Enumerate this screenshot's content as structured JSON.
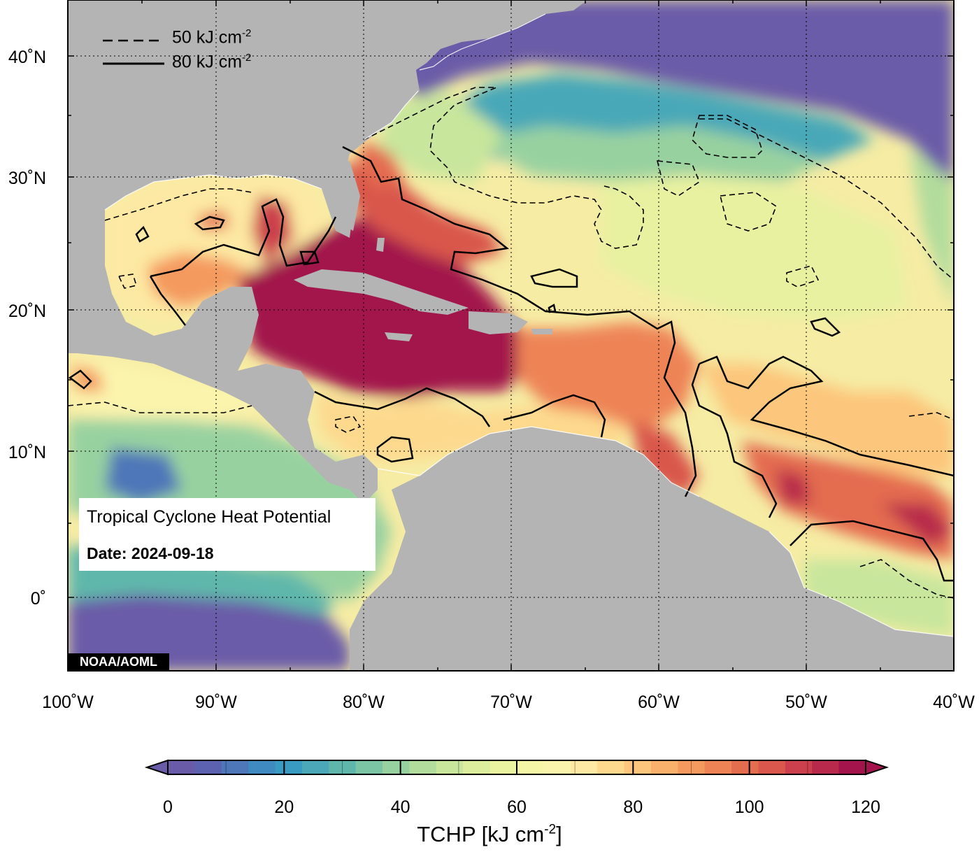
{
  "credit": "NOAA/AOML",
  "title": "Tropical Cyclone Heat Potential",
  "date_label": "Date: 2024-09-18",
  "legend": {
    "dashed": {
      "text": "50 kJ cm",
      "exp": "-2"
    },
    "solid": {
      "text": "80 kJ cm",
      "exp": "-2"
    }
  },
  "lat_labels": [
    "40˚N",
    "30˚N",
    "20˚N",
    "10˚N",
    "0˚"
  ],
  "lon_labels": [
    "100˚W",
    "90˚W",
    "80˚W",
    "70˚W",
    "60˚W",
    "50˚W",
    "40˚W"
  ],
  "colorbar": {
    "title": "TCHP [kJ cm",
    "title_exp": "-2",
    "title_close": "]",
    "ticks": [
      "0",
      "20",
      "40",
      "60",
      "80",
      "100",
      "120"
    ],
    "colors": [
      "#6a5ba8",
      "#5d62b0",
      "#4d77b8",
      "#3f8ac0",
      "#3a9bc2",
      "#4aa8b8",
      "#5fb7ab",
      "#7cc5a4",
      "#98d1a0",
      "#b2dc9c",
      "#c8e69c",
      "#dcee9e",
      "#eaf39f",
      "#f5f7a6",
      "#fbf4ad",
      "#fde9a3",
      "#fdd98e",
      "#fcc67c",
      "#f9b06b",
      "#f49a5e",
      "#ee8456",
      "#e46c4f",
      "#d9574c",
      "#cc3f4c",
      "#b8294b",
      "#a2144b"
    ],
    "under_color": "#6a5ba8",
    "over_color": "#a2144b"
  },
  "colors": {
    "land": "#b4b4b4",
    "ocean_cold": "#6a5ba8",
    "tchp_high": "#a2144b"
  }
}
